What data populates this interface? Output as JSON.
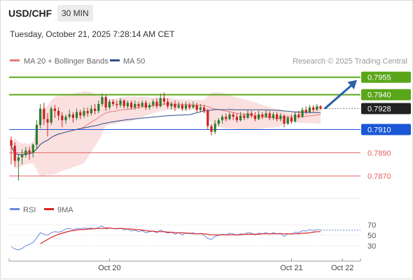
{
  "header": {
    "symbol": "USD/CHF",
    "timeframe": "30 MIN",
    "datetime": "Tuesday, October 21, 2025 7:28:14 AM CET"
  },
  "copyright": "Research © 2025 Trading Central",
  "colors": {
    "bull": "#2a7d2a",
    "bear": "#cc2222",
    "ma20": "#e87a7a",
    "bollinger_fill": "#fadada",
    "ma50": "#2c4f8a",
    "resistance": "#5aa61a",
    "pivot": "#1a56d6",
    "support": "#e46060",
    "price_tag": "#222222",
    "arrow": "#2b5fa8",
    "rsi": "#6a88dd",
    "rsi_ma": "#dd2222"
  },
  "chart_data": [
    {
      "type": "candlestick",
      "legend": [
        "MA 20 + Bollinger Bands",
        "MA 50"
      ],
      "ylim": [
        0.7855,
        0.7962
      ],
      "last_price": "0.7928",
      "levels": [
        {
          "value": 0.7955,
          "label": "0.7955",
          "kind": "resistance"
        },
        {
          "value": 0.794,
          "label": "0.7940",
          "kind": "resistance"
        },
        {
          "value": 0.791,
          "label": "0.7910",
          "kind": "pivot"
        },
        {
          "value": 0.789,
          "label": "0.7890",
          "kind": "support"
        },
        {
          "value": 0.787,
          "label": "0.7870",
          "kind": "support"
        }
      ],
      "projection": {
        "from": 0.7928,
        "to": 0.7955
      },
      "x_ticks": [
        {
          "index": 27,
          "label": "Oct 20"
        },
        {
          "index": 77,
          "label": "Oct 21"
        },
        {
          "index": 91,
          "label": "Oct 22"
        }
      ],
      "candles": [
        [
          0.7901,
          0.7896,
          0.7904,
          0.788
        ],
        [
          0.7896,
          0.7883,
          0.7899,
          0.7878
        ],
        [
          0.7883,
          0.7886,
          0.7889,
          0.7866
        ],
        [
          0.7886,
          0.7888,
          0.7893,
          0.788
        ],
        [
          0.7888,
          0.7892,
          0.7895,
          0.7886
        ],
        [
          0.7892,
          0.789,
          0.7895,
          0.7884
        ],
        [
          0.789,
          0.7897,
          0.7898,
          0.7886
        ],
        [
          0.7897,
          0.7914,
          0.7918,
          0.7893
        ],
        [
          0.7914,
          0.7928,
          0.7932,
          0.7911
        ],
        [
          0.7928,
          0.7919,
          0.7933,
          0.7914
        ],
        [
          0.7919,
          0.7916,
          0.7924,
          0.7904
        ],
        [
          0.7916,
          0.7928,
          0.793,
          0.7914
        ],
        [
          0.7928,
          0.7926,
          0.7931,
          0.792
        ],
        [
          0.7926,
          0.7922,
          0.7929,
          0.7918
        ],
        [
          0.7922,
          0.7918,
          0.7925,
          0.7912
        ],
        [
          0.7918,
          0.7921,
          0.7923,
          0.7915
        ],
        [
          0.7921,
          0.7923,
          0.7927,
          0.7919
        ],
        [
          0.7923,
          0.792,
          0.7925,
          0.7916
        ],
        [
          0.792,
          0.7925,
          0.7928,
          0.7918
        ],
        [
          0.7925,
          0.7922,
          0.7927,
          0.7919
        ],
        [
          0.7922,
          0.7926,
          0.7929,
          0.792
        ],
        [
          0.7926,
          0.7924,
          0.7929,
          0.7921
        ],
        [
          0.7924,
          0.7928,
          0.7931,
          0.7922
        ],
        [
          0.7928,
          0.7926,
          0.7932,
          0.7923
        ],
        [
          0.7926,
          0.7932,
          0.7935,
          0.7924
        ],
        [
          0.7932,
          0.7938,
          0.7941,
          0.793
        ],
        [
          0.7938,
          0.7929,
          0.794,
          0.7926
        ],
        [
          0.7929,
          0.7934,
          0.7936,
          0.7927
        ],
        [
          0.7934,
          0.7932,
          0.7936,
          0.793
        ],
        [
          0.7932,
          0.7931,
          0.7935,
          0.7928
        ],
        [
          0.7931,
          0.7935,
          0.7937,
          0.7929
        ],
        [
          0.7935,
          0.793,
          0.7936,
          0.7928
        ],
        [
          0.793,
          0.7933,
          0.7935,
          0.7928
        ],
        [
          0.7933,
          0.7929,
          0.7935,
          0.7927
        ],
        [
          0.7929,
          0.7932,
          0.7935,
          0.7927
        ],
        [
          0.7932,
          0.793,
          0.7934,
          0.7928
        ],
        [
          0.793,
          0.7933,
          0.7935,
          0.7929
        ],
        [
          0.7933,
          0.7929,
          0.7935,
          0.7927
        ],
        [
          0.7929,
          0.7931,
          0.7933,
          0.7927
        ],
        [
          0.7931,
          0.7934,
          0.7936,
          0.7929
        ],
        [
          0.7934,
          0.793,
          0.7937,
          0.7928
        ],
        [
          0.793,
          0.7937,
          0.7941,
          0.7929
        ],
        [
          0.7937,
          0.7934,
          0.7942,
          0.7931
        ],
        [
          0.7934,
          0.793,
          0.7937,
          0.7928
        ],
        [
          0.793,
          0.7932,
          0.7934,
          0.7927
        ],
        [
          0.7932,
          0.7929,
          0.7935,
          0.7926
        ],
        [
          0.7929,
          0.7931,
          0.7934,
          0.7928
        ],
        [
          0.7931,
          0.7928,
          0.7933,
          0.7926
        ],
        [
          0.7928,
          0.7931,
          0.7934,
          0.7926
        ],
        [
          0.7931,
          0.7929,
          0.7933,
          0.7927
        ],
        [
          0.7929,
          0.7931,
          0.7934,
          0.7928
        ],
        [
          0.7931,
          0.7927,
          0.7933,
          0.7925
        ],
        [
          0.7927,
          0.7929,
          0.7932,
          0.7925
        ],
        [
          0.7929,
          0.7926,
          0.7931,
          0.7924
        ],
        [
          0.7926,
          0.7913,
          0.7928,
          0.791
        ],
        [
          0.7913,
          0.7908,
          0.7915,
          0.7905
        ],
        [
          0.7908,
          0.7915,
          0.7918,
          0.7906
        ],
        [
          0.7915,
          0.7918,
          0.792,
          0.7913
        ],
        [
          0.7918,
          0.7921,
          0.7923,
          0.7915
        ],
        [
          0.7921,
          0.7919,
          0.7924,
          0.7917
        ],
        [
          0.7919,
          0.7923,
          0.7925,
          0.7918
        ],
        [
          0.7923,
          0.7921,
          0.7925,
          0.7918
        ],
        [
          0.7921,
          0.7918,
          0.7924,
          0.7916
        ],
        [
          0.7918,
          0.7922,
          0.7925,
          0.7917
        ],
        [
          0.7922,
          0.792,
          0.7924,
          0.7918
        ],
        [
          0.792,
          0.7924,
          0.7927,
          0.7919
        ],
        [
          0.7924,
          0.7922,
          0.7926,
          0.792
        ],
        [
          0.7922,
          0.7919,
          0.7925,
          0.7917
        ],
        [
          0.7919,
          0.7923,
          0.7926,
          0.7918
        ],
        [
          0.7923,
          0.7921,
          0.7925,
          0.7919
        ],
        [
          0.7921,
          0.7924,
          0.7927,
          0.792
        ],
        [
          0.7924,
          0.792,
          0.7926,
          0.7918
        ],
        [
          0.792,
          0.7923,
          0.7925,
          0.7918
        ],
        [
          0.7923,
          0.7919,
          0.7925,
          0.7917
        ],
        [
          0.7919,
          0.7922,
          0.7924,
          0.7917
        ],
        [
          0.7922,
          0.7915,
          0.7923,
          0.7912
        ],
        [
          0.7915,
          0.792,
          0.7922,
          0.7914
        ],
        [
          0.792,
          0.7917,
          0.7923,
          0.7915
        ],
        [
          0.7917,
          0.7923,
          0.7925,
          0.7916
        ],
        [
          0.7923,
          0.7921,
          0.7926,
          0.7919
        ],
        [
          0.7921,
          0.7927,
          0.7929,
          0.792
        ],
        [
          0.7927,
          0.7925,
          0.793,
          0.7923
        ],
        [
          0.7925,
          0.7929,
          0.7931,
          0.7924
        ],
        [
          0.7929,
          0.7927,
          0.7931,
          0.7925
        ],
        [
          0.7927,
          0.793,
          0.7932,
          0.7926
        ],
        [
          0.793,
          0.7928,
          0.7931,
          0.7927
        ]
      ]
    },
    {
      "type": "line",
      "legend": [
        "RSI",
        "9MA"
      ],
      "ylim": [
        10,
        82
      ],
      "y_ticks": [
        70,
        50,
        30
      ],
      "rsi": [
        28,
        24,
        22,
        25,
        30,
        33,
        36,
        45,
        55,
        52,
        50,
        55,
        57,
        56,
        58,
        62,
        63,
        61,
        63,
        62,
        64,
        63,
        64,
        62,
        65,
        68,
        62,
        64,
        63,
        62,
        64,
        60,
        62,
        58,
        60,
        57,
        59,
        55,
        57,
        58,
        55,
        60,
        57,
        54,
        56,
        52,
        55,
        51,
        55,
        53,
        55,
        52,
        54,
        50,
        44,
        42,
        48,
        50,
        52,
        51,
        54,
        53,
        50,
        53,
        52,
        55,
        54,
        51,
        54,
        53,
        55,
        52,
        55,
        53,
        54,
        48,
        53,
        52,
        56,
        55,
        59,
        58,
        61,
        59,
        61,
        60
      ],
      "rsi_ma": [
        null,
        null,
        null,
        null,
        null,
        null,
        null,
        null,
        34,
        38,
        42,
        46,
        49,
        52,
        54,
        56,
        58,
        59,
        60,
        61,
        61,
        62,
        62,
        63,
        63,
        63,
        64,
        64,
        63,
        63,
        63,
        63,
        62,
        62,
        61,
        61,
        60,
        59,
        58,
        58,
        57,
        57,
        57,
        56,
        56,
        55,
        55,
        55,
        54,
        54,
        53,
        53,
        53,
        53,
        52,
        51,
        51,
        51,
        51,
        51,
        51,
        51,
        51,
        51,
        52,
        52,
        52,
        52,
        52,
        53,
        53,
        53,
        53,
        53,
        53,
        53,
        53,
        53,
        53,
        53,
        54,
        54,
        55,
        56,
        57,
        57
      ]
    }
  ]
}
